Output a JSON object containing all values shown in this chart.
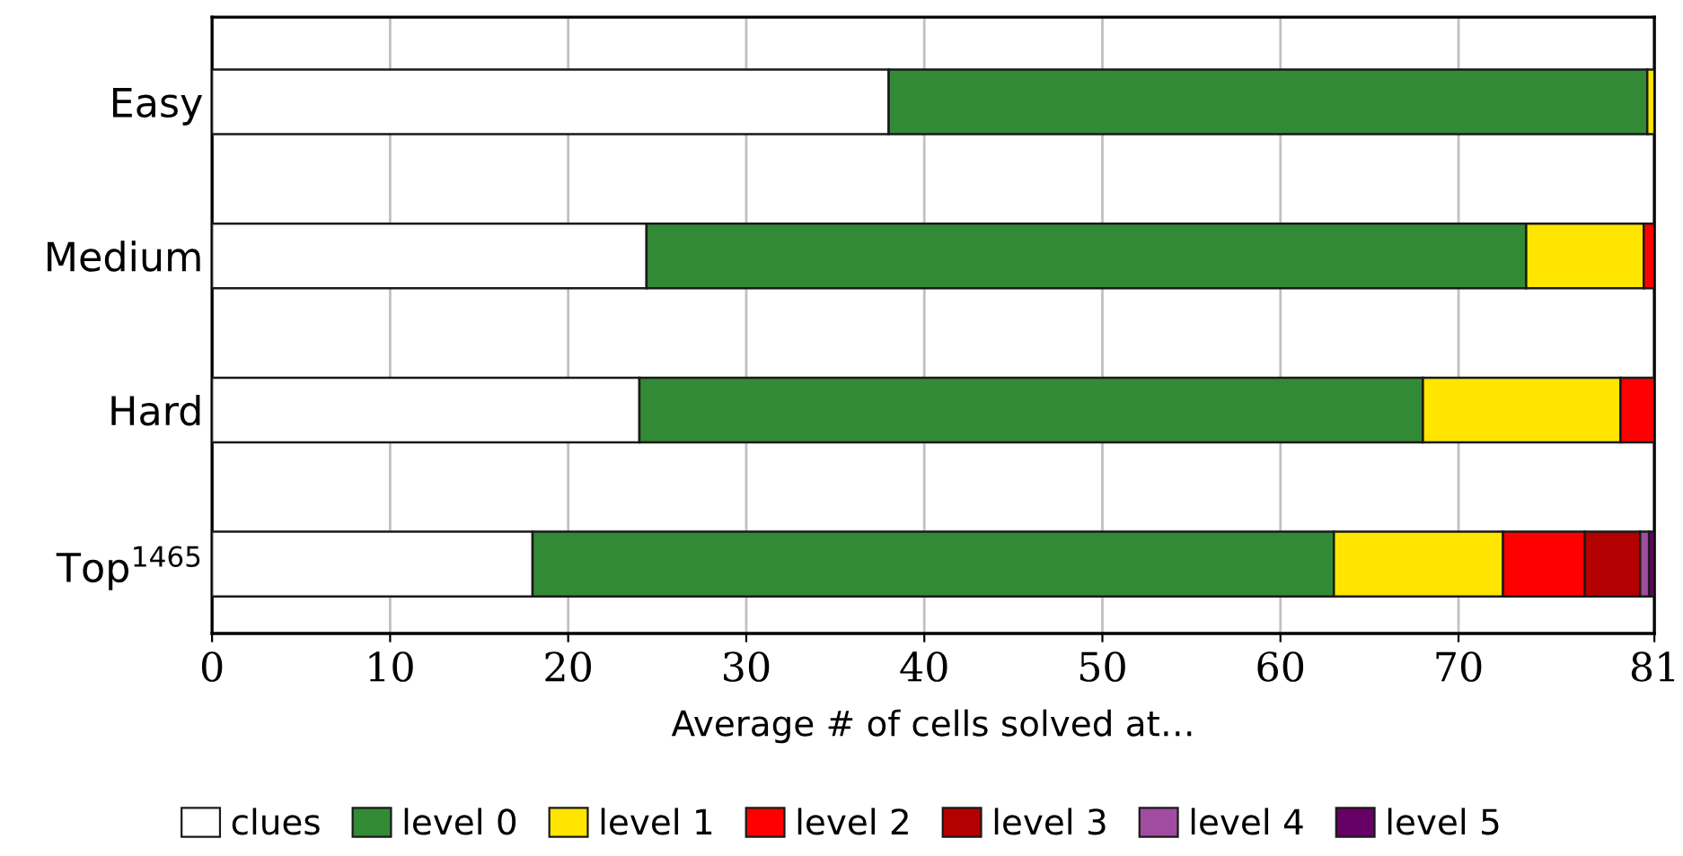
{
  "chart_data": {
    "type": "bar",
    "orientation": "horizontal",
    "stacked": true,
    "categories": [
      "Easy",
      "Medium",
      "Hard",
      "Top$^{1465}$"
    ],
    "series": [
      {
        "name": "clues",
        "color": "#ffffff",
        "values": [
          38,
          24.4,
          24.0,
          18.0
        ]
      },
      {
        "name": "level 0",
        "color": "#338a36",
        "values": [
          42.6,
          49.4,
          44.0,
          45.0
        ]
      },
      {
        "name": "level 1",
        "color": "#ffe500",
        "values": [
          0.4,
          6.6,
          11.1,
          9.5
        ]
      },
      {
        "name": "level 2",
        "color": "#ff0000",
        "values": [
          null,
          0.6,
          1.9,
          4.6
        ]
      },
      {
        "name": "level 3",
        "color": "#b30000",
        "values": [
          null,
          null,
          null,
          3.1
        ]
      },
      {
        "name": "level 4",
        "color": "#a04da0",
        "values": [
          null,
          null,
          null,
          0.5
        ]
      },
      {
        "name": "level 5",
        "color": "#660066",
        "values": [
          null,
          null,
          null,
          0.3
        ]
      }
    ],
    "xlim": [
      0,
      81
    ],
    "xticks": [
      0,
      10,
      20,
      30,
      40,
      50,
      60,
      70,
      81
    ],
    "xlabel": "Average # of cells solved at…",
    "grid": "x",
    "legend": "bottom"
  }
}
